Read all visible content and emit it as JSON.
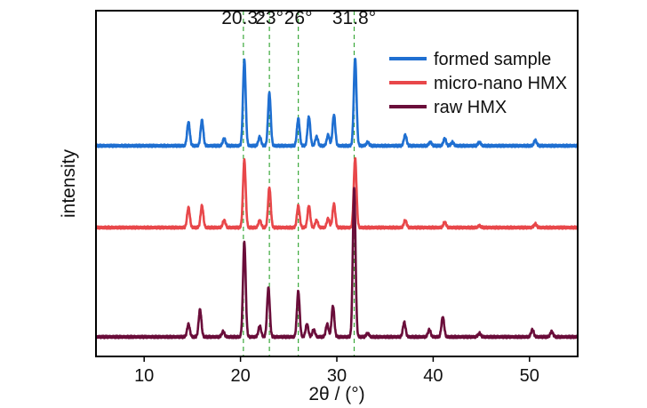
{
  "chart_data": {
    "type": "line",
    "title": "",
    "xlabel": "2θ / (°)",
    "ylabel": "intensity",
    "xlim": [
      5,
      55
    ],
    "xticks": [
      10,
      20,
      30,
      40,
      50
    ],
    "yticks_shown": false,
    "grid": false,
    "legend_placement": "top-right",
    "reference_lines": [
      {
        "x": 20.3,
        "label": "20.3°"
      },
      {
        "x": 23.0,
        "label": "23°"
      },
      {
        "x": 26.0,
        "label": "26°"
      },
      {
        "x": 31.8,
        "label": "31.8°"
      }
    ],
    "reference_line_color": "#3aa83a",
    "series": [
      {
        "name": "formed sample",
        "color": "#1f6fd1",
        "offset": 2.0,
        "baseline": 0.0,
        "peaks": [
          [
            14.6,
            0.13
          ],
          [
            16.0,
            0.14
          ],
          [
            18.3,
            0.04
          ],
          [
            20.4,
            0.47
          ],
          [
            22.0,
            0.05
          ],
          [
            23.0,
            0.29
          ],
          [
            26.0,
            0.15
          ],
          [
            27.1,
            0.16
          ],
          [
            27.9,
            0.05
          ],
          [
            29.1,
            0.06
          ],
          [
            29.7,
            0.17
          ],
          [
            31.9,
            0.48
          ],
          [
            33.2,
            0.02
          ],
          [
            37.1,
            0.06
          ],
          [
            39.7,
            0.02
          ],
          [
            41.2,
            0.04
          ],
          [
            42.0,
            0.02
          ],
          [
            44.8,
            0.02
          ],
          [
            50.6,
            0.03
          ]
        ]
      },
      {
        "name": "micro-nano HMX",
        "color": "#e8474a",
        "offset": 1.0,
        "baseline": 0.0,
        "peaks": [
          [
            14.6,
            0.11
          ],
          [
            16.0,
            0.12
          ],
          [
            18.3,
            0.04
          ],
          [
            20.4,
            0.37
          ],
          [
            22.0,
            0.04
          ],
          [
            23.0,
            0.22
          ],
          [
            26.0,
            0.12
          ],
          [
            27.1,
            0.12
          ],
          [
            27.9,
            0.04
          ],
          [
            29.1,
            0.05
          ],
          [
            29.7,
            0.13
          ],
          [
            31.9,
            0.38
          ],
          [
            37.1,
            0.04
          ],
          [
            41.2,
            0.03
          ],
          [
            44.8,
            0.01
          ],
          [
            50.6,
            0.02
          ]
        ]
      },
      {
        "name": "raw HMX",
        "color": "#6a0d3a",
        "offset": 0.0,
        "baseline": 0.0,
        "peaks": [
          [
            14.6,
            0.07
          ],
          [
            15.8,
            0.15
          ],
          [
            18.2,
            0.03
          ],
          [
            20.4,
            0.52
          ],
          [
            22.0,
            0.06
          ],
          [
            22.9,
            0.27
          ],
          [
            26.0,
            0.25
          ],
          [
            26.9,
            0.07
          ],
          [
            27.6,
            0.04
          ],
          [
            29.0,
            0.07
          ],
          [
            29.6,
            0.17
          ],
          [
            31.8,
            0.82
          ],
          [
            33.2,
            0.02
          ],
          [
            37.0,
            0.08
          ],
          [
            39.6,
            0.04
          ],
          [
            41.0,
            0.11
          ],
          [
            44.8,
            0.02
          ],
          [
            50.3,
            0.04
          ],
          [
            52.3,
            0.03
          ]
        ]
      }
    ]
  }
}
